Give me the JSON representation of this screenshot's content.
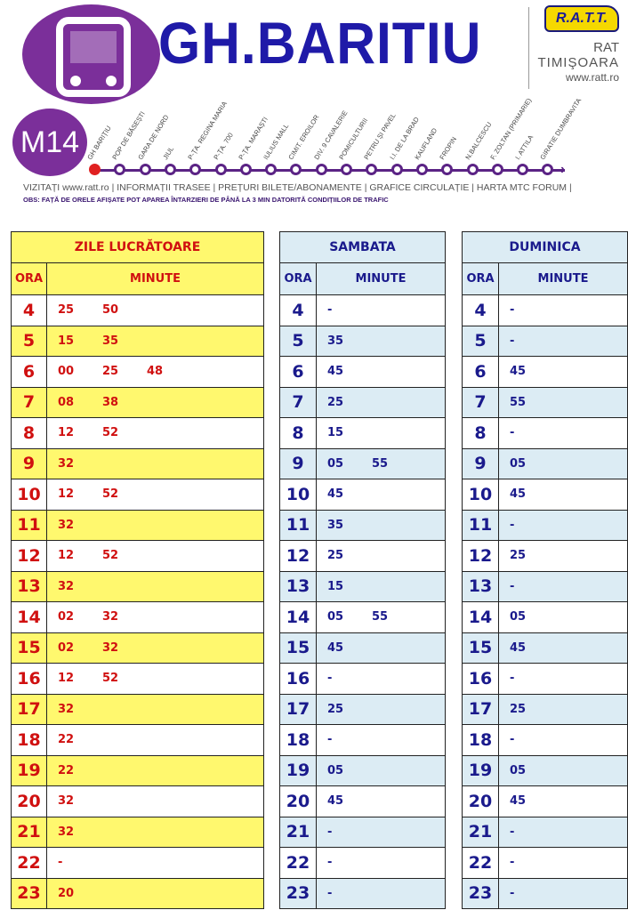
{
  "header": {
    "route": "M14",
    "title": "GH.BARITIU",
    "brand_logo": "R.A.T.T.",
    "brand_name_1": "RAT",
    "brand_name_2": "TIMIŞOARA",
    "brand_url": "www.ratt.ro",
    "stops": [
      "GH BARIȚIU",
      "POP DE BĂSEȘTI",
      "GARA DE NORD",
      "JIUL",
      "P-ȚA. REGINA MARIA",
      "P-ȚA. 700",
      "P-ȚA. MARAȘTI",
      "IULIUS MALL",
      "CIMIT. EROILOR",
      "DIV. 9 CAVALERIE",
      "POMICULTURII",
      "PETRU ȘI PAVEL",
      "I.I. DE LA BRAD",
      "KAUFLAND",
      "FROPIN",
      "N.BALCESCU",
      "F. ZOLTAN (PRIMARIE)",
      "I. ATTILA",
      "GIRATIE DUMBRAVITA"
    ],
    "links": "VIZITAȚI www.ratt.ro | INFORMAȚII TRASEE | PREȚURI BILETE/ABONAMENTE | GRAFICE CIRCULAȚIE | HARTA MTC   FORUM |",
    "notice": "OBS: FAȚĂ DE ORELE AFIȘATE POT APAREA ÎNTARZIERI DE PÂNĂ LA 3 MIN DATORITĂ CONDIȚIILOR DE TRAFIC"
  },
  "colors": {
    "route_purple": "#7b2f9a",
    "weekday_red": "#d01010",
    "weekday_yellow": "#fff86e",
    "weekend_blue": "#1a1a8c",
    "weekend_bg": "#dcecf4"
  },
  "tables": [
    {
      "id": "week",
      "title": "ZILE LUCRĂTOARE",
      "col_hour": "ORA",
      "col_min": "MINUTE",
      "rows": [
        [
          "4",
          [
            "25",
            "50"
          ]
        ],
        [
          "5",
          [
            "15",
            "35"
          ]
        ],
        [
          "6",
          [
            "00",
            "25",
            "48"
          ]
        ],
        [
          "7",
          [
            "08",
            "38"
          ]
        ],
        [
          "8",
          [
            "12",
            "52"
          ]
        ],
        [
          "9",
          [
            "32"
          ]
        ],
        [
          "10",
          [
            "12",
            "52"
          ]
        ],
        [
          "11",
          [
            "32"
          ]
        ],
        [
          "12",
          [
            "12",
            "52"
          ]
        ],
        [
          "13",
          [
            "32"
          ]
        ],
        [
          "14",
          [
            "02",
            "32"
          ]
        ],
        [
          "15",
          [
            "02",
            "32"
          ]
        ],
        [
          "16",
          [
            "12",
            "52"
          ]
        ],
        [
          "17",
          [
            "32"
          ]
        ],
        [
          "18",
          [
            "22"
          ]
        ],
        [
          "19",
          [
            "22"
          ]
        ],
        [
          "20",
          [
            "32"
          ]
        ],
        [
          "21",
          [
            "32"
          ]
        ],
        [
          "22",
          [
            "-"
          ]
        ],
        [
          "23",
          [
            "20"
          ]
        ]
      ]
    },
    {
      "id": "sat",
      "title": "SAMBATA",
      "col_hour": "ORA",
      "col_min": "MINUTE",
      "rows": [
        [
          "4",
          [
            "-"
          ]
        ],
        [
          "5",
          [
            "35"
          ]
        ],
        [
          "6",
          [
            "45"
          ]
        ],
        [
          "7",
          [
            "25"
          ]
        ],
        [
          "8",
          [
            "15"
          ]
        ],
        [
          "9",
          [
            "05",
            "55"
          ]
        ],
        [
          "10",
          [
            "45"
          ]
        ],
        [
          "11",
          [
            "35"
          ]
        ],
        [
          "12",
          [
            "25"
          ]
        ],
        [
          "13",
          [
            "15"
          ]
        ],
        [
          "14",
          [
            "05",
            "55"
          ]
        ],
        [
          "15",
          [
            "45"
          ]
        ],
        [
          "16",
          [
            "-"
          ]
        ],
        [
          "17",
          [
            "25"
          ]
        ],
        [
          "18",
          [
            "-"
          ]
        ],
        [
          "19",
          [
            "05"
          ]
        ],
        [
          "20",
          [
            "45"
          ]
        ],
        [
          "21",
          [
            "-"
          ]
        ],
        [
          "22",
          [
            "-"
          ]
        ],
        [
          "23",
          [
            "-"
          ]
        ]
      ]
    },
    {
      "id": "sun",
      "title": "DUMINICA",
      "col_hour": "ORA",
      "col_min": "MINUTE",
      "rows": [
        [
          "4",
          [
            "-"
          ]
        ],
        [
          "5",
          [
            "-"
          ]
        ],
        [
          "6",
          [
            "45"
          ]
        ],
        [
          "7",
          [
            "55"
          ]
        ],
        [
          "8",
          [
            "-"
          ]
        ],
        [
          "9",
          [
            "05"
          ]
        ],
        [
          "10",
          [
            "45"
          ]
        ],
        [
          "11",
          [
            "-"
          ]
        ],
        [
          "12",
          [
            "25"
          ]
        ],
        [
          "13",
          [
            "-"
          ]
        ],
        [
          "14",
          [
            "05"
          ]
        ],
        [
          "15",
          [
            "45"
          ]
        ],
        [
          "16",
          [
            "-"
          ]
        ],
        [
          "17",
          [
            "25"
          ]
        ],
        [
          "18",
          [
            "-"
          ]
        ],
        [
          "19",
          [
            "05"
          ]
        ],
        [
          "20",
          [
            "45"
          ]
        ],
        [
          "21",
          [
            "-"
          ]
        ],
        [
          "22",
          [
            "-"
          ]
        ],
        [
          "23",
          [
            "-"
          ]
        ]
      ]
    }
  ]
}
